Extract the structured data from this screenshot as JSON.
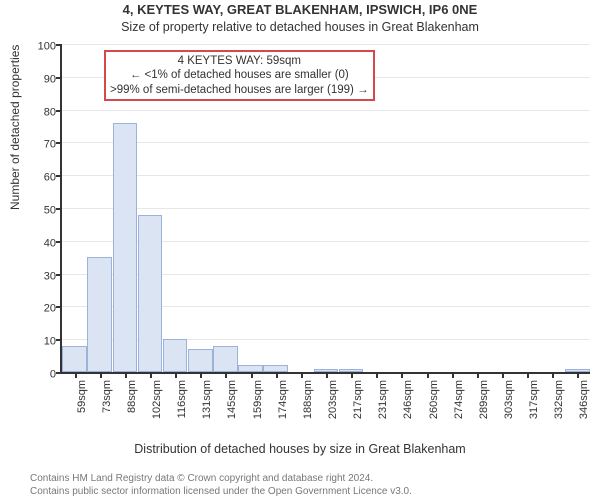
{
  "title": "4, KEYTES WAY, GREAT BLAKENHAM, IPSWICH, IP6 0NE",
  "subtitle": "Size of property relative to detached houses in Great Blakenham",
  "ylabel": "Number of detached properties",
  "xlabel": "Distribution of detached houses by size in Great Blakenham",
  "chart": {
    "type": "histogram-bar",
    "ylim": [
      0,
      100
    ],
    "ytick_step": 10,
    "bar_fill": "#dbe4f3",
    "bar_stroke": "#9db2d8",
    "grid_color": "#e7e7e7",
    "axis_color": "#333333",
    "categories": [
      "59sqm",
      "73sqm",
      "88sqm",
      "102sqm",
      "116sqm",
      "131sqm",
      "145sqm",
      "159sqm",
      "174sqm",
      "188sqm",
      "203sqm",
      "217sqm",
      "231sqm",
      "246sqm",
      "260sqm",
      "274sqm",
      "289sqm",
      "303sqm",
      "317sqm",
      "332sqm",
      "346sqm"
    ],
    "values": [
      8,
      35,
      76,
      48,
      10,
      7,
      8,
      2,
      2,
      0,
      1,
      1,
      0,
      0,
      0,
      0,
      0,
      0,
      0,
      0,
      1
    ]
  },
  "annotation": {
    "line1": "4 KEYTES WAY: 59sqm",
    "line2": "← <1% of detached houses are smaller (0)",
    "line3": ">99% of semi-detached houses are larger (199) →",
    "border_color": "#d44a4a"
  },
  "footer": {
    "line1": "Contains HM Land Registry data © Crown copyright and database right 2024.",
    "line2": "Contains public sector information licensed under the Open Government Licence v3.0."
  }
}
